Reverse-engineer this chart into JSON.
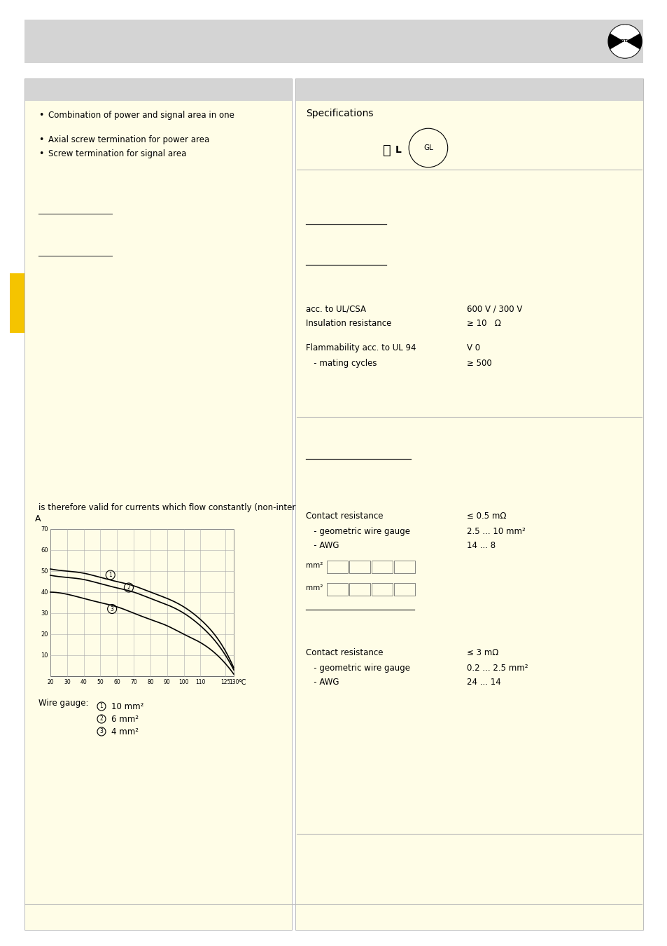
{
  "page_bg": "#ffffff",
  "gray_color": "#cccccc",
  "yellow_color": "#fffde7",
  "gold_tab": "#f5c400",
  "left_bullets": [
    "Combination of power and signal area in one",
    "Axial screw termination for power area",
    "Screw termination for signal area"
  ],
  "spec_title": "Specifications",
  "bottom_text": "is therefore valid for currents which flow constantly (non-inter",
  "wire_gauge_label": "Wire gauge:",
  "wire_gauges": [
    [
      "1",
      "10 mm²"
    ],
    [
      "2",
      "6 mm²"
    ],
    [
      "3",
      "4 mm²"
    ]
  ],
  "spec1_col1": [
    "acc. to UL/CSA",
    "Insulation resistance"
  ],
  "spec1_col2": [
    "600 V / 300 V",
    "≥ 10   Ω"
  ],
  "spec1b_col1": [
    "Flammability acc. to UL 94",
    "   - mating cycles"
  ],
  "spec1b_col2": [
    "V 0",
    "≥ 500"
  ],
  "sec2_col1": [
    "Contact resistance",
    "   - geometric wire gauge",
    "   - AWG"
  ],
  "sec2_col2": [
    "≤ 0.5 mΩ",
    "2.5 ... 10 mm²",
    "14 ... 8"
  ],
  "sec3_col1": [
    "Contact resistance",
    "   - geometric wire gauge",
    "   - AWG"
  ],
  "sec3_col2": [
    "≤ 3 mΩ",
    "0.2 ... 2.5 mm²",
    "24 ... 14"
  ],
  "chart_y_vals": [
    10,
    20,
    30,
    40,
    50,
    60,
    70
  ],
  "chart_x_ticks": [
    20,
    30,
    40,
    50,
    60,
    70,
    80,
    90,
    100,
    110,
    125,
    130
  ],
  "curve1": [
    51,
    50,
    49,
    47,
    45,
    43,
    40,
    37,
    33,
    27,
    12,
    4
  ],
  "curve2": [
    48,
    47,
    46,
    44,
    42,
    40,
    37,
    34,
    30,
    24,
    10,
    3
  ],
  "curve3": [
    40,
    39,
    37,
    35,
    33,
    30,
    27,
    24,
    20,
    16,
    6,
    1
  ],
  "curve_temps": [
    20,
    30,
    40,
    50,
    60,
    70,
    80,
    90,
    100,
    110,
    125,
    130
  ]
}
